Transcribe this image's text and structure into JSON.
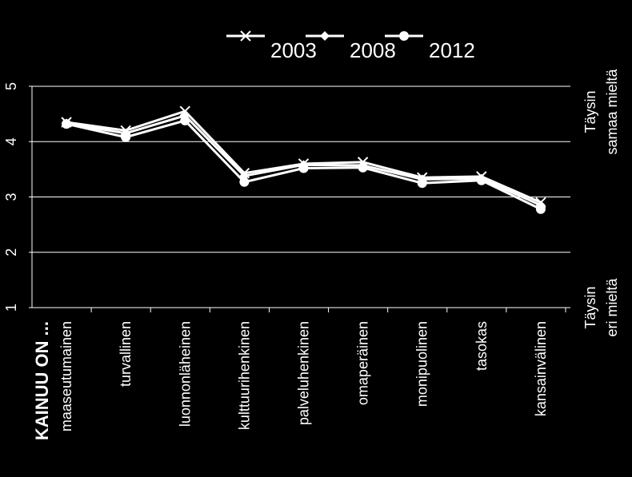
{
  "chart_data": {
    "type": "line",
    "x_label": "KAINUU ON ...",
    "categories": [
      "maaseutumainen",
      "turvallinen",
      "luonnonläheinen",
      "kulttuurihenkinen",
      "palveluhenkinen",
      "omaperäinen",
      "monipuolinen",
      "tasokas",
      "kansainvälinen"
    ],
    "series": [
      {
        "name": "2003",
        "color": "#ffffff",
        "marker": "x",
        "values": [
          4.35,
          4.2,
          4.55,
          3.43,
          3.6,
          3.63,
          3.35,
          3.37,
          2.9
        ]
      },
      {
        "name": "2008",
        "color": "#ffffff",
        "marker": "diamond",
        "values": [
          4.33,
          4.15,
          4.47,
          3.38,
          3.58,
          3.57,
          3.32,
          3.33,
          2.85
        ]
      },
      {
        "name": "2012",
        "color": "#ffffff",
        "marker": "circle",
        "values": [
          4.32,
          4.08,
          4.38,
          3.27,
          3.52,
          3.53,
          3.25,
          3.3,
          2.78
        ]
      }
    ],
    "ylim": [
      1,
      5
    ],
    "yticks": [
      1,
      2,
      3,
      4,
      5
    ],
    "grid": true,
    "annotations": {
      "top": [
        "Täysin",
        "samaa mieltä"
      ],
      "bottom": [
        "Täysin",
        "eri mieltä"
      ]
    }
  }
}
